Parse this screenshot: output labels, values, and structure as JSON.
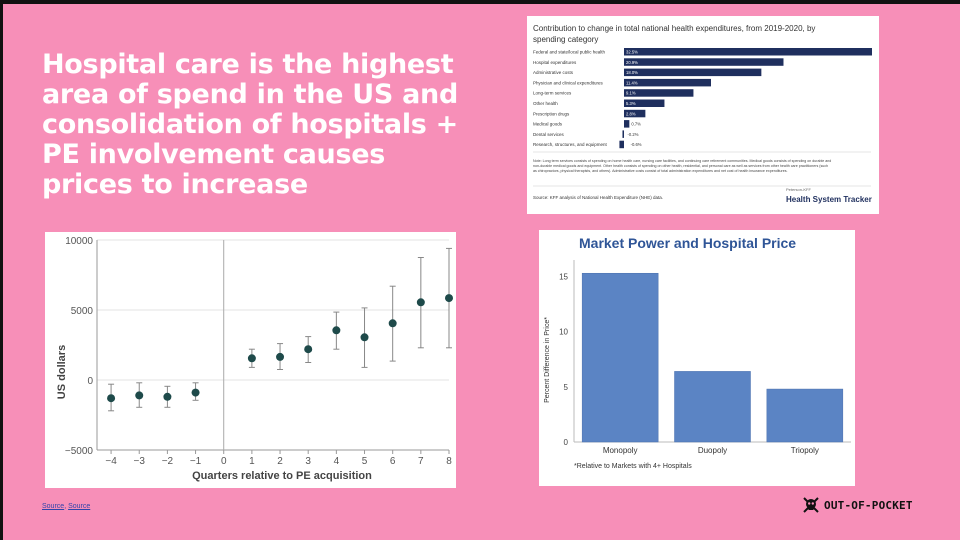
{
  "slide": {
    "headline": "Hospital care is the highest area of spend in the US and consolidation of hospitals + PE involvement causes prices to increase",
    "sources": [
      "Source",
      "Source"
    ],
    "sources_sep": ", ",
    "logo_text": "OUT-OF-POCKET",
    "logo_icon": "skull-crossbones-icon"
  },
  "chart_data": [
    {
      "type": "bar",
      "orientation": "horizontal",
      "title": "Contribution to change in total national health expenditures, from 2019-2020, by spending category",
      "categories": [
        "Federal and state/local public health",
        "Hospital expenditures",
        "Administrative costs",
        "Physician and clinical expenditures",
        "Long-term services",
        "Other health",
        "Prescription drugs",
        "Medical goods",
        "Dental services",
        "Research, structures, and equipment"
      ],
      "values": [
        32.5,
        20.9,
        18.0,
        11.4,
        9.1,
        5.3,
        2.8,
        0.7,
        -0.2,
        -0.6
      ],
      "value_labels": [
        "32.5%",
        "20.9%",
        "18.0%",
        "11.4%",
        "9.1%",
        "5.3%",
        "2.8%",
        "0.7%",
        "-0.2%",
        "-0.6%"
      ],
      "color": "#1f2f5e",
      "note": "Note: Long term services consists of spending on home health care, nursing care facilities, and continuing care retirement communities. Medical goods consists of spending on durable and non-durable medical goods and equipment. Other health consists of spending on other health, residential, and personal care as well as services from other health care practitioners (such as chiropractors, physical therapists, and others). Administrative costs consist of total administration expenditures and net cost of health insurance expenditures.",
      "source": "Source: KFF analysis of National Health Expenditure (NHE) data.",
      "brand_small": "Peterson-KFF",
      "brand": "Health System Tracker"
    },
    {
      "type": "scatter",
      "subtype": "point-range",
      "xlabel": "Quarters relative to PE acquisition",
      "ylabel": "US dollars",
      "x": [
        -4,
        -3,
        -2,
        -1,
        1,
        2,
        3,
        4,
        5,
        6,
        7,
        8
      ],
      "y": [
        -1300,
        -1100,
        -1200,
        -900,
        1550,
        1650,
        2200,
        3550,
        3050,
        4050,
        5550,
        5850
      ],
      "y_low": [
        -2200,
        -1950,
        -1950,
        -1450,
        900,
        750,
        1250,
        2200,
        900,
        1350,
        2300,
        2300
      ],
      "y_high": [
        -300,
        -200,
        -450,
        -200,
        2200,
        2600,
        3100,
        4850,
        5150,
        6700,
        8750,
        9400
      ],
      "xticks": [
        "-4",
        "-3",
        "-2",
        "-1",
        "0",
        "1",
        "2",
        "3",
        "4",
        "5",
        "6",
        "7",
        "8"
      ],
      "yticks": [
        "10000",
        "5000",
        "0",
        "−5000"
      ],
      "ylim": [
        -5000,
        10000
      ],
      "xlim": [
        -4.5,
        8
      ],
      "vline_x": 0,
      "grid": "horizontal",
      "point_color": "#1e4a4a"
    },
    {
      "type": "bar",
      "title": "Market Power and Hospital Price",
      "ylabel": "Percent Difference in Price*",
      "categories": [
        "Monopoly",
        "Duopoly",
        "Triopoly"
      ],
      "values": [
        15.3,
        6.4,
        4.8
      ],
      "yticks": [
        "15",
        "10",
        "5",
        "0"
      ],
      "ylim": [
        0,
        16.5
      ],
      "footnote": "*Relative to Markets with 4+ Hospitals",
      "color": "#5b84c4",
      "title_color": "#2f5597"
    }
  ]
}
